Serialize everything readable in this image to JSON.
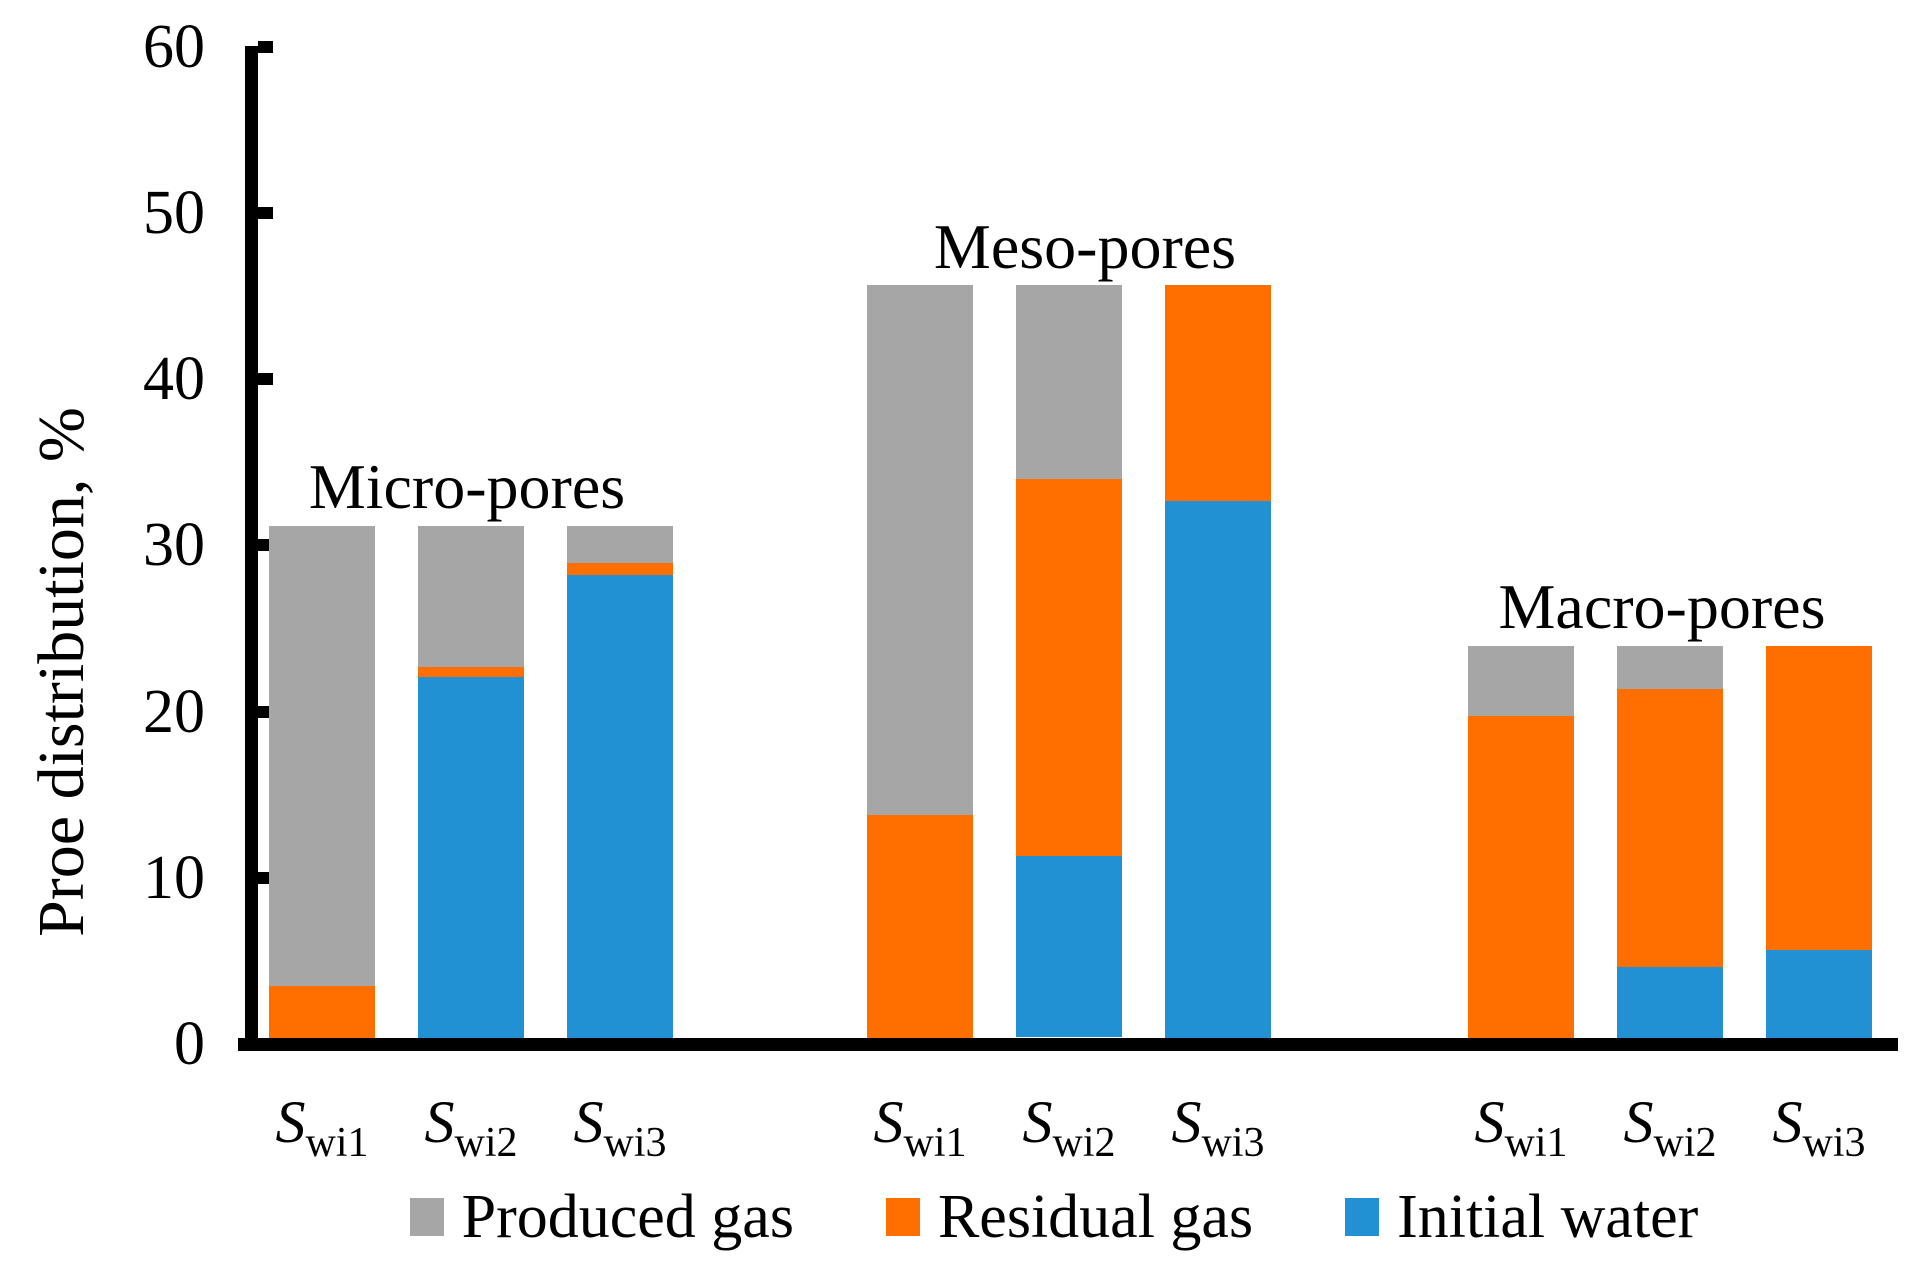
{
  "figure": {
    "background": "#FFFFFF"
  },
  "chart_data": {
    "type": "bar",
    "stacked": true,
    "title": "",
    "ylabel": "Proe distribution, %",
    "xlabel": "",
    "ylim": [
      0,
      60
    ],
    "yticks": [
      0,
      10,
      20,
      30,
      40,
      50,
      60
    ],
    "grid": false,
    "legend_position": "bottom",
    "series_order_bottom_to_top": [
      "initial_water",
      "residual_gas",
      "produced_gas"
    ],
    "legend": [
      {
        "series": "produced_gas",
        "label": "Produced gas",
        "color": "#A6A6A6"
      },
      {
        "series": "residual_gas",
        "label": "Residual gas",
        "color": "#FF6F00"
      },
      {
        "series": "initial_water",
        "label": "Initial water",
        "color": "#2191D3"
      }
    ],
    "x_tick_labels": [
      {
        "base": "S",
        "sub": "wi1"
      },
      {
        "base": "S",
        "sub": "wi2"
      },
      {
        "base": "S",
        "sub": "wi3"
      }
    ],
    "groups": [
      {
        "name": "Micro-pores",
        "bars": [
          {
            "x_label": "Swi1",
            "initial_water": 0,
            "residual_gas": 3.1,
            "produced_gas": 27.7,
            "total": 30.8
          },
          {
            "x_label": "Swi2",
            "initial_water": 21.7,
            "residual_gas": 0.6,
            "produced_gas": 8.5,
            "total": 30.8
          },
          {
            "x_label": "Swi3",
            "initial_water": 27.9,
            "residual_gas": 0.7,
            "produced_gas": 2.2,
            "total": 30.8
          }
        ]
      },
      {
        "name": "Meso-pores",
        "bars": [
          {
            "x_label": "Swi1",
            "initial_water": 0,
            "residual_gas": 13.4,
            "produced_gas": 31.9,
            "total": 45.3
          },
          {
            "x_label": "Swi2",
            "initial_water": 10.9,
            "residual_gas": 22.7,
            "produced_gas": 11.7,
            "total": 45.3
          },
          {
            "x_label": "Swi3",
            "initial_water": 32.3,
            "residual_gas": 13.0,
            "produced_gas": 0,
            "total": 45.3
          }
        ]
      },
      {
        "name": "Macro-pores",
        "bars": [
          {
            "x_label": "Swi1",
            "initial_water": 0,
            "residual_gas": 19.4,
            "produced_gas": 4.2,
            "total": 23.6
          },
          {
            "x_label": "Swi2",
            "initial_water": 4.3,
            "residual_gas": 16.7,
            "produced_gas": 2.6,
            "total": 23.6
          },
          {
            "x_label": "Swi3",
            "initial_water": 5.3,
            "residual_gas": 18.3,
            "produced_gas": 0,
            "total": 23.6
          }
        ]
      }
    ]
  }
}
